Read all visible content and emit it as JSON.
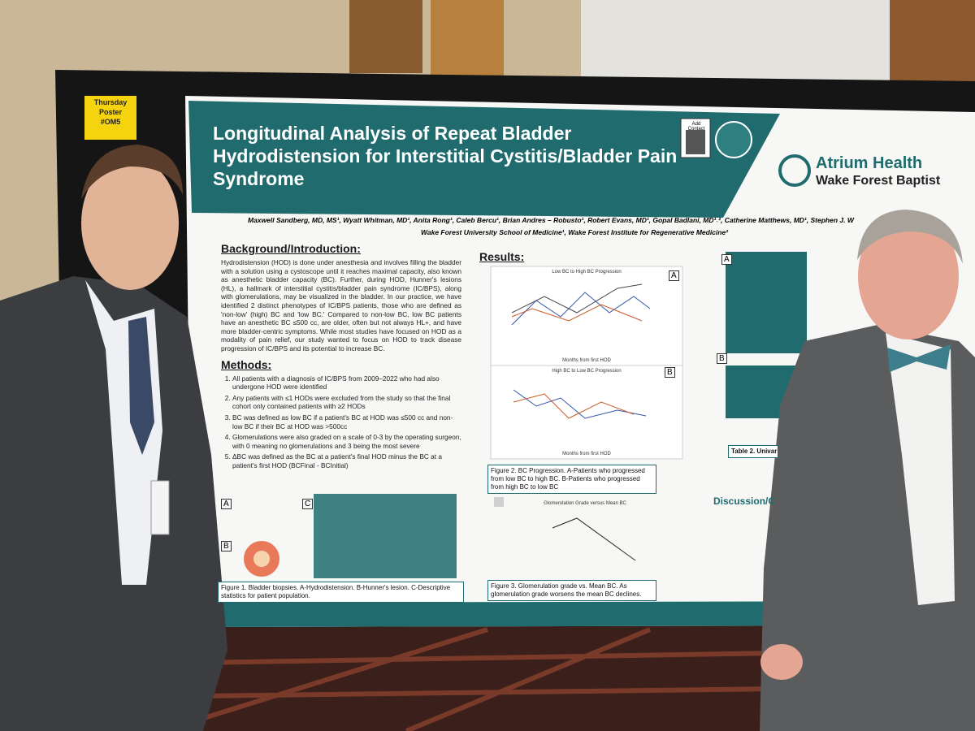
{
  "sticky_note": {
    "lines": [
      "Thursday",
      "Poster",
      "#OM5"
    ]
  },
  "header": {
    "title": "Longitudinal Analysis of Repeat Bladder Hydrodistension for Interstitial Cystitis/Bladder Pain Syndrome",
    "qr_label": "Add Contact",
    "logo": {
      "name": "Atrium Health",
      "subtitle": "Wake Forest Baptist"
    }
  },
  "authors": "Maxwell Sandberg, MD, MS¹, Wyatt Whitman, MD¹, Anita Rong¹, Caleb Bercu¹, Brian Andres – Robusto¹, Robert Evans, MD¹, Gopal Badlani, MD¹˒², Catherine Matthews, MD¹, Stephen J. W",
  "affiliations": "Wake Forest University School of Medicine¹, Wake Forest Institute for Regenerative Medicine²",
  "background": {
    "heading": "Background/Introduction:",
    "text": "Hydrodistension (HOD) is done under anesthesia and involves filling the bladder with a solution using a cystoscope until it reaches maximal capacity, also known as anesthetic bladder capacity (BC). Further, during HOD, Hunner's lesions (HL), a hallmark of interstitial cystitis/bladder pain syndrome (IC/BPS), along with glomerulations, may be visualized in the bladder. In our practice, we have identified 2 distinct phenotypes of IC/BPS patients, those who are defined as 'non-low' (high) BC and 'low BC.' Compared to non-low BC, low BC patients have an anesthetic BC ≤500 cc, are older, often but not always HL+, and have more bladder-centric symptoms. While most studies have focused on HOD as a modality of pain relief, our study wanted to focus on HOD to track disease progression of IC/BPS and its potential to increase BC."
  },
  "methods": {
    "heading": "Methods:",
    "items": [
      "All patients with a diagnosis of IC/BPS from 2009–2022 who had also undergone HOD were identified",
      "Any patients with ≤1 HODs were excluded from the study so that the final cohort only contained patients with ≥2 HODs",
      "BC was defined as low BC if a patient's BC at HOD was ≤500 cc and non-low BC if their BC at HOD was >500cc",
      "Glomerulations were also graded on a scale of 0-3 by the operating surgeon, with 0 meaning no glomerulations and 3 being the most severe",
      "ΔBC was defined as the BC at a patient's final HOD minus the BC at a patient's first HOD (BCFinal - BCInitial)"
    ]
  },
  "results": {
    "heading": "Results:",
    "chart_a_title": "Low BC to High BC Progression",
    "chart_b_title": "High BC to Low BC Progression",
    "chart_c_title": "Glomerulation Grade versus Mean BC",
    "x_axis_label": "Months from first HOD",
    "y_axis_label": "Bladder Capacity (cc)"
  },
  "captions": {
    "figure1": "Figure 1. Bladder biopsies. A-Hydrodistension. B-Hunner's lesion. C-Descriptive statistics for patient population.",
    "figure2": "Figure 2. BC Progression. A-Patients who progressed from low BC to high BC. B-Patients who progressed from high BC to low BC",
    "figure3": "Figure 3. Glomerulation grade vs. Mean BC. As glomerulation grade worsens the mean BC declines.",
    "table2": "Table 2. Univari"
  },
  "panel_labels": [
    "A",
    "B",
    "C"
  ],
  "discussion": {
    "heading": "Discussion/C"
  }
}
